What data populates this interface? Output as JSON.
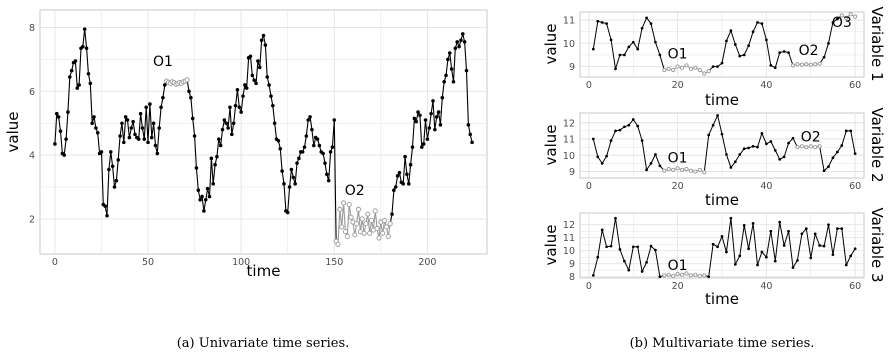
{
  "captions": {
    "a": "(a) Univariate time series.",
    "b": "(b) Multivariate time series."
  },
  "colors": {
    "normal": "#000000",
    "outlier": "#9a9a9a",
    "grid": "#e3e3e3",
    "panel_border": "#c9c9c9"
  },
  "chart_data": [
    {
      "type": "line",
      "xlabel": "time",
      "ylabel": "value",
      "xlim": [
        -8,
        232
      ],
      "ylim": [
        0.9,
        8.55
      ],
      "xticks": [
        0,
        50,
        100,
        150,
        200
      ],
      "yticks": [
        2,
        4,
        6,
        8
      ],
      "grid": true,
      "annotations": [
        {
          "text": "O1",
          "x": 58,
          "y": 6.8
        },
        {
          "text": "O2",
          "x": 161,
          "y": 2.75
        }
      ],
      "series": [
        {
          "style": "normal",
          "x": [
            0,
            1,
            2,
            3,
            4,
            5,
            6,
            7,
            8,
            9,
            10,
            11,
            12,
            13,
            14,
            15,
            16,
            17,
            18,
            19,
            20,
            21,
            22,
            23,
            24,
            25,
            26,
            27,
            28,
            29,
            30,
            31,
            32,
            33,
            34,
            35,
            36,
            37,
            38,
            39,
            40,
            41,
            42,
            43,
            44,
            45,
            46,
            47,
            48,
            49,
            50,
            51,
            52,
            53,
            54,
            55,
            56,
            57,
            58,
            59
          ],
          "y": [
            4.35,
            5.3,
            5.2,
            4.75,
            4.05,
            4.0,
            4.5,
            5.35,
            6.45,
            6.65,
            6.9,
            6.95,
            6.1,
            6.2,
            7.35,
            7.4,
            7.95,
            7.35,
            6.55,
            6.25,
            5.0,
            5.2,
            4.85,
            4.7,
            4.05,
            4.1,
            2.45,
            2.4,
            2.1,
            3.55,
            4.1,
            3.65,
            3.0,
            3.2,
            3.85,
            4.6,
            5.0,
            4.4,
            5.2,
            5.1,
            4.55,
            4.85,
            5.05,
            4.65,
            4.55,
            4.5,
            5.3,
            4.85,
            4.5,
            5.5,
            4.4,
            5.6,
            4.55,
            5.0,
            4.3,
            4.05,
            4.85,
            5.5,
            5.8,
            6.2
          ]
        },
        {
          "style": "outlier",
          "x": [
            60,
            61,
            62,
            63,
            64,
            65,
            66,
            67,
            68,
            69,
            70,
            71
          ],
          "y": [
            6.32,
            6.28,
            6.25,
            6.3,
            6.27,
            6.22,
            6.24,
            6.28,
            6.25,
            6.3,
            6.32,
            6.36
          ]
        },
        {
          "style": "normal",
          "x": [
            72,
            73,
            74,
            75,
            76,
            77,
            78,
            79,
            80,
            81,
            82,
            83,
            84,
            85,
            86,
            87,
            88,
            89,
            90,
            91,
            92,
            93,
            94,
            95,
            96,
            97,
            98,
            99,
            100,
            101,
            102,
            103,
            104,
            105,
            106,
            107,
            108,
            109,
            110,
            111,
            112,
            113,
            114,
            115,
            116,
            117,
            118,
            119,
            120,
            121,
            122,
            123,
            124,
            125,
            126,
            127,
            128,
            129,
            130,
            131,
            132,
            133,
            134,
            135,
            136,
            137,
            138,
            139,
            140,
            141,
            142,
            143,
            144,
            145,
            146,
            147,
            148,
            149,
            150
          ],
          "y": [
            6.0,
            5.8,
            5.15,
            4.6,
            3.6,
            2.9,
            2.6,
            2.7,
            2.25,
            2.6,
            2.95,
            2.7,
            3.9,
            3.1,
            3.7,
            3.95,
            4.5,
            4.3,
            4.8,
            5.1,
            5.0,
            4.85,
            5.5,
            4.65,
            5.0,
            5.55,
            6.05,
            5.5,
            5.35,
            5.85,
            6.2,
            6.1,
            7.05,
            7.1,
            6.5,
            6.35,
            6.25,
            6.95,
            6.75,
            7.6,
            7.75,
            7.45,
            6.45,
            6.2,
            5.85,
            5.55,
            5.0,
            4.5,
            4.45,
            4.2,
            3.5,
            3.1,
            2.25,
            2.2,
            3.0,
            3.55,
            3.3,
            3.1,
            3.75,
            3.9,
            4.1,
            4.1,
            4.25,
            4.6,
            5.1,
            5.2,
            4.8,
            4.3,
            4.55,
            4.5,
            4.3,
            4.1,
            4.05,
            3.75,
            3.4,
            3.2,
            4.1,
            4.25,
            5.1
          ]
        },
        {
          "style": "outlier",
          "x": [
            151,
            152,
            153,
            154,
            155,
            156,
            157,
            158,
            159,
            160,
            161,
            162,
            163,
            164,
            165,
            166,
            167,
            168,
            169,
            170,
            171,
            172,
            173,
            174,
            175,
            176,
            177,
            178,
            179,
            180
          ],
          "y": [
            1.3,
            1.2,
            2.3,
            1.75,
            2.5,
            1.6,
            1.45,
            2.45,
            2.05,
            1.9,
            1.5,
            1.85,
            2.3,
            1.6,
            2.0,
            1.55,
            1.85,
            2.15,
            1.55,
            1.95,
            1.65,
            2.25,
            1.7,
            1.4,
            1.9,
            1.55,
            1.95,
            1.75,
            1.45,
            1.85
          ]
        },
        {
          "style": "normal",
          "x": [
            181,
            182,
            183,
            184,
            185,
            186,
            187,
            188,
            189,
            190,
            191,
            192,
            193,
            194,
            195,
            196,
            197,
            198,
            199,
            200,
            201,
            202,
            203,
            204,
            205,
            206,
            207,
            208,
            209,
            210,
            211,
            212,
            213,
            214,
            215,
            216,
            217,
            218,
            219,
            220,
            221,
            222,
            223,
            224
          ],
          "y": [
            2.15,
            2.9,
            3.0,
            3.35,
            3.45,
            3.15,
            3.1,
            3.95,
            3.4,
            3.1,
            3.7,
            4.25,
            5.15,
            5.05,
            5.35,
            5.25,
            4.25,
            4.35,
            5.1,
            4.5,
            4.85,
            5.3,
            5.7,
            4.8,
            5.2,
            5.35,
            4.95,
            5.8,
            6.3,
            6.5,
            7.0,
            7.2,
            6.7,
            6.3,
            7.35,
            7.55,
            7.4,
            7.6,
            7.8,
            7.55,
            6.65,
            4.95,
            4.65,
            4.4
          ]
        }
      ]
    },
    {
      "type": "line",
      "xlabel": "time",
      "ylabel": "value",
      "panel": "Variable 1",
      "xlim": [
        -2,
        62
      ],
      "ylim": [
        8.55,
        11.35
      ],
      "xticks": [
        0,
        20,
        40,
        60
      ],
      "yticks": [
        9,
        10,
        11
      ],
      "grid": true,
      "annotations": [
        {
          "text": "O1",
          "x": 20,
          "y": 9.35
        },
        {
          "text": "O2",
          "x": 49.5,
          "y": 9.5
        },
        {
          "text": "O3",
          "x": 57,
          "y": 10.7
        }
      ],
      "series": [
        {
          "style": "normal",
          "x": [
            1,
            2,
            3,
            4,
            5,
            6,
            7,
            8,
            9,
            10,
            11,
            12,
            13,
            14,
            15,
            16
          ],
          "y": [
            9.75,
            10.95,
            10.9,
            10.85,
            10.15,
            8.9,
            9.5,
            9.5,
            9.85,
            10.05,
            9.75,
            10.65,
            11.1,
            10.85,
            10.05,
            9.5
          ]
        },
        {
          "style": "outlier",
          "x": [
            17,
            18,
            19,
            20,
            21,
            22,
            23,
            24,
            25,
            26,
            27
          ],
          "y": [
            8.85,
            8.9,
            8.85,
            9.0,
            8.95,
            9.05,
            8.9,
            8.95,
            8.85,
            8.7,
            8.8
          ]
        },
        {
          "style": "normal",
          "x": [
            28,
            29,
            30,
            31,
            32,
            33,
            34,
            35,
            36,
            37,
            38,
            39,
            40,
            41,
            42,
            43,
            44,
            45
          ],
          "y": [
            9.0,
            9.0,
            9.15,
            10.1,
            10.55,
            9.95,
            9.45,
            9.5,
            9.9,
            10.5,
            10.9,
            10.85,
            10.15,
            9.05,
            8.95,
            9.6,
            9.65,
            9.6
          ]
        },
        {
          "style": "outlier",
          "x": [
            46,
            47,
            48,
            49,
            50,
            51,
            52
          ],
          "y": [
            9.05,
            9.1,
            9.08,
            9.1,
            9.08,
            9.1,
            9.12
          ]
        },
        {
          "style": "normal",
          "x": [
            53,
            54,
            55,
            56
          ],
          "y": [
            9.4,
            10.0,
            10.9,
            11.05
          ]
        },
        {
          "style": "outlier",
          "x": [
            57,
            58,
            59,
            60
          ],
          "y": [
            11.2,
            11.1,
            11.25,
            11.15
          ]
        }
      ]
    },
    {
      "type": "line",
      "xlabel": "time",
      "ylabel": "value",
      "panel": "Variable 2",
      "xlim": [
        -2,
        62
      ],
      "ylim": [
        8.6,
        12.6
      ],
      "xticks": [
        0,
        20,
        40,
        60
      ],
      "yticks": [
        9,
        10,
        11,
        12
      ],
      "grid": true,
      "annotations": [
        {
          "text": "O1",
          "x": 20,
          "y": 9.55
        },
        {
          "text": "O2",
          "x": 50,
          "y": 10.85
        }
      ],
      "series": [
        {
          "style": "normal",
          "x": [
            1,
            2,
            3,
            4,
            5,
            6,
            7,
            8,
            9,
            10,
            11,
            12,
            13,
            14,
            15,
            16
          ],
          "y": [
            11.0,
            9.9,
            9.5,
            9.95,
            10.9,
            11.5,
            11.55,
            11.75,
            11.85,
            12.2,
            11.8,
            10.9,
            9.1,
            9.5,
            10.05,
            9.35
          ]
        },
        {
          "style": "outlier",
          "x": [
            17,
            18,
            19,
            20,
            21,
            22,
            23,
            24,
            25,
            26
          ],
          "y": [
            9.05,
            9.15,
            9.1,
            9.2,
            9.1,
            9.15,
            9.05,
            9.0,
            9.1,
            8.95
          ]
        },
        {
          "style": "normal",
          "x": [
            27,
            28,
            29,
            30,
            31,
            32,
            33,
            34,
            35,
            36,
            37,
            38,
            39,
            40,
            41,
            42,
            43,
            44,
            45,
            46
          ],
          "y": [
            11.25,
            11.85,
            12.45,
            11.3,
            10.05,
            9.25,
            9.6,
            10.05,
            10.4,
            10.45,
            10.55,
            10.5,
            11.35,
            10.7,
            10.85,
            10.3,
            9.75,
            9.9,
            10.75,
            11.05
          ]
        },
        {
          "style": "outlier",
          "x": [
            47,
            48,
            49,
            50,
            51,
            52
          ],
          "y": [
            10.5,
            10.55,
            10.5,
            10.55,
            10.5,
            10.55
          ]
        },
        {
          "style": "normal",
          "x": [
            53,
            54,
            55,
            56,
            57,
            58,
            59,
            60
          ],
          "y": [
            9.05,
            9.3,
            9.85,
            10.2,
            10.6,
            11.5,
            11.5,
            10.1
          ]
        }
      ]
    },
    {
      "type": "line",
      "xlabel": "time",
      "ylabel": "value",
      "panel": "Variable 3",
      "xlim": [
        -2,
        62
      ],
      "ylim": [
        7.9,
        12.9
      ],
      "xticks": [
        0,
        20,
        40,
        60
      ],
      "yticks": [
        8,
        9,
        10,
        11,
        12
      ],
      "grid": true,
      "annotations": [
        {
          "text": "O1",
          "x": 20,
          "y": 8.5
        }
      ],
      "series": [
        {
          "style": "normal",
          "x": [
            1,
            2,
            3,
            4,
            5,
            6,
            7,
            8,
            9,
            10,
            11,
            12,
            13,
            14,
            15,
            16
          ],
          "y": [
            8.1,
            9.5,
            11.6,
            10.3,
            10.35,
            12.5,
            10.1,
            9.2,
            8.5,
            10.3,
            10.3,
            8.4,
            9.1,
            10.35,
            10.05,
            8.0
          ]
        },
        {
          "style": "outlier",
          "x": [
            17,
            18,
            19,
            20,
            21,
            22,
            23,
            24,
            25,
            26
          ],
          "y": [
            8.1,
            8.15,
            8.05,
            8.2,
            8.15,
            8.25,
            8.1,
            8.15,
            8.05,
            8.1
          ]
        },
        {
          "style": "normal",
          "x": [
            27,
            28,
            29,
            30,
            31,
            32,
            33,
            34,
            35,
            36,
            37,
            38,
            39,
            40,
            41,
            42,
            43,
            44,
            45,
            46,
            47,
            48,
            49,
            50,
            51,
            52,
            53,
            54,
            55,
            56,
            57,
            58,
            59,
            60
          ],
          "y": [
            8.0,
            10.5,
            10.3,
            11.1,
            9.9,
            12.5,
            8.95,
            9.6,
            11.95,
            10.15,
            12.1,
            8.9,
            9.9,
            9.5,
            11.5,
            9.2,
            12.2,
            10.4,
            11.5,
            8.7,
            9.25,
            11.3,
            11.7,
            9.45,
            11.3,
            10.4,
            10.35,
            12.0,
            9.7,
            11.7,
            11.7,
            8.9,
            9.6,
            10.15
          ]
        }
      ]
    }
  ]
}
